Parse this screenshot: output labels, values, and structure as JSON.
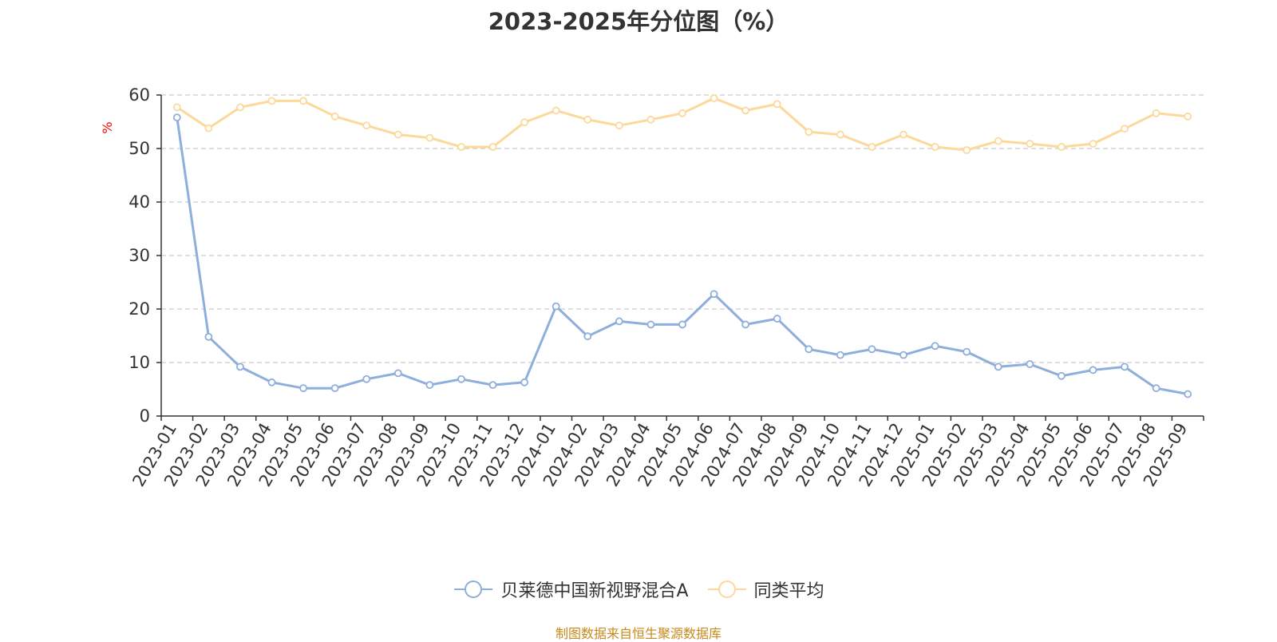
{
  "chart_data": {
    "type": "line",
    "title": "2023-2025年分位图（%）",
    "ylabel": "%",
    "ylim": [
      0,
      60
    ],
    "yticks": [
      0,
      10,
      20,
      30,
      40,
      50,
      60
    ],
    "grid": true,
    "legend_position": "bottom",
    "x": [
      "2023-01",
      "2023-02",
      "2023-03",
      "2023-04",
      "2023-05",
      "2023-06",
      "2023-07",
      "2023-08",
      "2023-09",
      "2023-10",
      "2023-11",
      "2023-12",
      "2024-01",
      "2024-02",
      "2024-03",
      "2024-04",
      "2024-05",
      "2024-06",
      "2024-07",
      "2024-08",
      "2024-09",
      "2024-10",
      "2024-11",
      "2024-12",
      "2025-01",
      "2025-02",
      "2025-03",
      "2025-04",
      "2025-05",
      "2025-06",
      "2025-07",
      "2025-08",
      "2025-09"
    ],
    "series": [
      {
        "name": "贝莱德中国新视野混合A",
        "color": "#8eaedb",
        "values": [
          55.8,
          14.8,
          9.2,
          6.3,
          5.2,
          5.2,
          6.9,
          8.0,
          5.8,
          6.9,
          5.8,
          6.3,
          20.5,
          14.9,
          17.7,
          17.1,
          17.1,
          22.8,
          17.1,
          18.2,
          12.5,
          11.4,
          12.5,
          11.4,
          13.1,
          12.0,
          9.2,
          9.7,
          7.5,
          8.6,
          9.2,
          5.2,
          4.1
        ]
      },
      {
        "name": "同类平均",
        "color": "#fcd99a",
        "values": [
          57.7,
          53.8,
          57.7,
          58.9,
          58.9,
          56.0,
          54.3,
          52.6,
          52.0,
          50.3,
          50.3,
          54.9,
          57.1,
          55.4,
          54.3,
          55.4,
          56.6,
          59.4,
          57.1,
          58.3,
          53.1,
          52.6,
          50.3,
          52.6,
          50.3,
          49.7,
          51.4,
          50.9,
          50.3,
          50.9,
          53.7,
          56.6,
          56.0
        ]
      }
    ]
  },
  "source_note": "制图数据来自恒生聚源数据库"
}
